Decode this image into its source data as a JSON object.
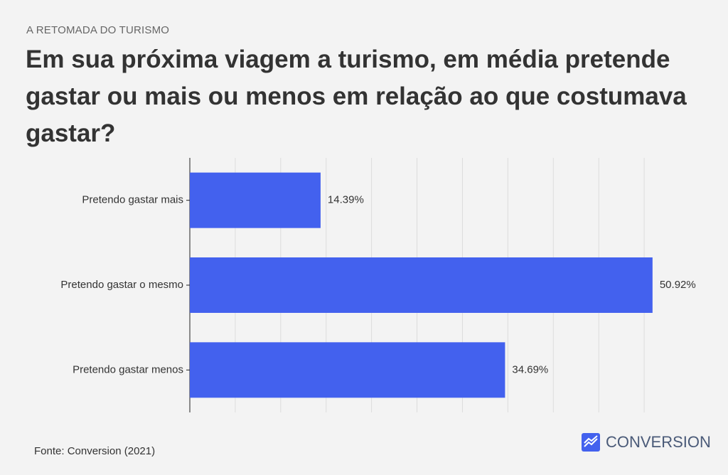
{
  "header": {
    "kicker": "A RETOMADA DO TURISMO",
    "title": "Em sua próxima viagem a turismo, em média pretende gastar ou mais ou menos em relação ao que costumava gastar?"
  },
  "chart_data": {
    "type": "hbar",
    "categories": [
      "Pretendo gastar mais",
      "Pretendo gastar o mesmo",
      "Pretendo gastar menos"
    ],
    "values": [
      14.39,
      50.92,
      34.69
    ],
    "value_labels": [
      "14.39%",
      "50.92%",
      "34.69%"
    ],
    "color": "#4361ee",
    "xlim": [
      0,
      55
    ],
    "xticks": [
      0,
      5,
      10,
      15,
      20,
      25,
      30,
      35,
      40,
      45,
      50
    ],
    "grid": true
  },
  "footer": {
    "source": "Fonte: Conversion (2021)",
    "brand": "CONVERSION"
  }
}
